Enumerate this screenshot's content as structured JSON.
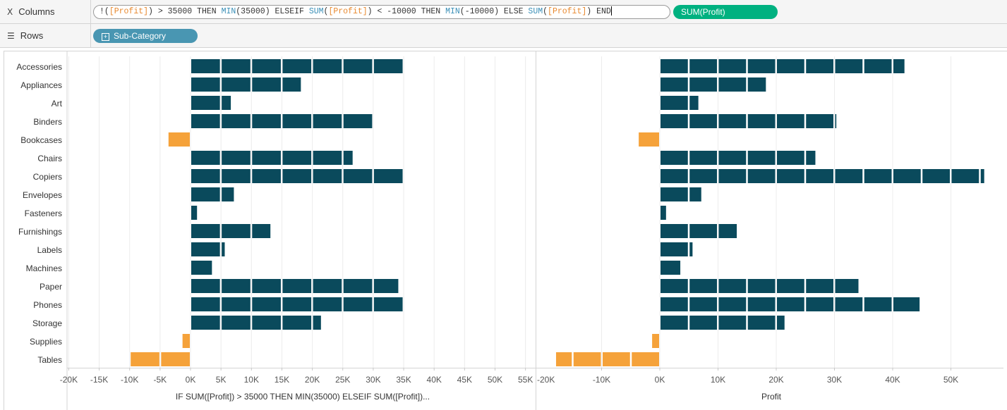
{
  "shelves": {
    "columns": {
      "label": "Columns",
      "icon": "columns-icon",
      "calc_segments": [
        {
          "t": "!(",
          "k": "txt"
        },
        {
          "t": "[Profit]",
          "k": "fld"
        },
        {
          "t": ") > 35000 THEN ",
          "k": "txt"
        },
        {
          "t": "MIN",
          "k": "fn"
        },
        {
          "t": "(35000) ELSEIF ",
          "k": "txt"
        },
        {
          "t": "SUM",
          "k": "fn"
        },
        {
          "t": "(",
          "k": "txt"
        },
        {
          "t": "[Profit]",
          "k": "fld"
        },
        {
          "t": ") < -10000 THEN ",
          "k": "txt"
        },
        {
          "t": "MIN",
          "k": "fn"
        },
        {
          "t": "(-10000) ELSE ",
          "k": "txt"
        },
        {
          "t": "SUM",
          "k": "fn"
        },
        {
          "t": "(",
          "k": "txt"
        },
        {
          "t": "[Profit]",
          "k": "fld"
        },
        {
          "t": ") END",
          "k": "txt"
        }
      ],
      "pill": "SUM(Profit)"
    },
    "rows": {
      "label": "Rows",
      "icon": "rows-icon",
      "pill": "Sub-Category"
    }
  },
  "colors": {
    "positive": "#0a4a5c",
    "negative": "#f5a23a",
    "pill_green": "#00b180",
    "pill_blue": "#4996b2"
  },
  "chart_data": {
    "type": "bar",
    "categories": [
      "Accessories",
      "Appliances",
      "Art",
      "Binders",
      "Bookcases",
      "Chairs",
      "Copiers",
      "Envelopes",
      "Fasteners",
      "Furnishings",
      "Labels",
      "Machines",
      "Paper",
      "Phones",
      "Storage",
      "Supplies",
      "Tables"
    ],
    "panels": [
      {
        "xlabel": "IF SUM([Profit]) > 35000 THEN MIN(35000) ELSEIF SUM([Profit])...",
        "xlim": [
          -22000,
          57000
        ],
        "ticks": [
          -20000,
          -15000,
          -10000,
          -5000,
          0,
          5000,
          10000,
          15000,
          20000,
          25000,
          30000,
          35000,
          40000,
          45000,
          50000,
          55000
        ],
        "tick_labels": [
          "-20K",
          "-15K",
          "-10K",
          "-5K",
          "0K",
          "5K",
          "10K",
          "15K",
          "20K",
          "25K",
          "30K",
          "35K",
          "40K",
          "45K",
          "50K",
          "55K"
        ],
        "values": [
          35000,
          18000,
          6500,
          30000,
          -3500,
          26500,
          35000,
          7000,
          950,
          13000,
          5500,
          3400,
          34000,
          35000,
          21300,
          -1200,
          -10000
        ]
      },
      {
        "xlabel": "Profit",
        "xlim": [
          -21000,
          59000
        ],
        "ticks": [
          -10000,
          0,
          10000,
          20000,
          30000,
          40000,
          50000
        ],
        "tick_labels": [
          "-10K",
          "0K",
          "10K",
          "20K",
          "30K",
          "40K",
          "50K"
        ],
        "edge_tick_label": "-20K",
        "values": [
          41900,
          18100,
          6500,
          30200,
          -3500,
          26600,
          55600,
          7000,
          950,
          13100,
          5500,
          3400,
          34000,
          44500,
          21300,
          -1200,
          -17700
        ]
      }
    ],
    "grid": true
  }
}
